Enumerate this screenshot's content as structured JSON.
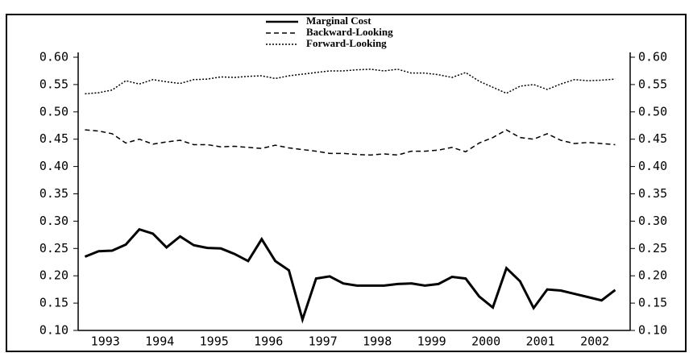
{
  "chart_data": {
    "type": "line",
    "x": [
      1993.125,
      1993.375,
      1993.625,
      1993.875,
      1994.125,
      1994.375,
      1994.625,
      1994.875,
      1995.125,
      1995.375,
      1995.625,
      1995.875,
      1996.125,
      1996.375,
      1996.625,
      1996.875,
      1997.125,
      1997.375,
      1997.625,
      1997.875,
      1998.125,
      1998.375,
      1998.625,
      1998.875,
      1999.125,
      1999.375,
      1999.625,
      1999.875,
      2000.125,
      2000.375,
      2000.625,
      2000.875,
      2001.125,
      2001.375,
      2001.625,
      2001.875,
      2002.125,
      2002.375,
      2002.625,
      2002.875
    ],
    "series": [
      {
        "name": "Marginal Cost",
        "color": "#000000",
        "dash": "solid",
        "values": [
          0.235,
          0.245,
          0.246,
          0.257,
          0.285,
          0.277,
          0.252,
          0.272,
          0.256,
          0.251,
          0.25,
          0.24,
          0.227,
          0.267,
          0.227,
          0.21,
          0.12,
          0.195,
          0.199,
          0.186,
          0.182,
          0.182,
          0.182,
          0.185,
          0.186,
          0.182,
          0.185,
          0.198,
          0.195,
          0.162,
          0.142,
          0.214,
          0.19,
          0.141,
          0.175,
          0.173,
          0.167,
          0.161,
          0.155,
          0.174
        ]
      },
      {
        "name": "Backward-Looking",
        "color": "#000000",
        "dash": "dashed",
        "values": [
          0.467,
          0.465,
          0.46,
          0.443,
          0.45,
          0.441,
          0.445,
          0.448,
          0.44,
          0.44,
          0.436,
          0.437,
          0.435,
          0.433,
          0.439,
          0.434,
          0.431,
          0.428,
          0.424,
          0.424,
          0.422,
          0.421,
          0.423,
          0.421,
          0.428,
          0.428,
          0.43,
          0.435,
          0.427,
          0.443,
          0.453,
          0.467,
          0.453,
          0.45,
          0.46,
          0.448,
          0.442,
          0.444,
          0.442,
          0.44
        ]
      },
      {
        "name": "Forward-Looking",
        "color": "#000000",
        "dash": "dotted",
        "values": [
          0.533,
          0.535,
          0.54,
          0.557,
          0.551,
          0.559,
          0.555,
          0.552,
          0.559,
          0.56,
          0.564,
          0.563,
          0.565,
          0.566,
          0.561,
          0.566,
          0.569,
          0.572,
          0.575,
          0.575,
          0.577,
          0.578,
          0.575,
          0.578,
          0.571,
          0.571,
          0.568,
          0.563,
          0.572,
          0.556,
          0.545,
          0.534,
          0.547,
          0.55,
          0.541,
          0.551,
          0.559,
          0.557,
          0.558,
          0.56
        ]
      }
    ],
    "xlim": [
      1993,
      2003.15
    ],
    "xticks": [
      {
        "value": 1993.5,
        "label": "1993"
      },
      {
        "value": 1994.5,
        "label": "1994"
      },
      {
        "value": 1995.5,
        "label": "1995"
      },
      {
        "value": 1996.5,
        "label": "1996"
      },
      {
        "value": 1997.5,
        "label": "1997"
      },
      {
        "value": 1998.5,
        "label": "1998"
      },
      {
        "value": 1999.5,
        "label": "1999"
      },
      {
        "value": 2000.5,
        "label": "2000"
      },
      {
        "value": 2001.5,
        "label": "2001"
      },
      {
        "value": 2002.5,
        "label": "2002"
      }
    ],
    "ylim": [
      0.1,
      0.6
    ],
    "yticks": [
      {
        "value": 0.1,
        "label": "0.10"
      },
      {
        "value": 0.15,
        "label": "0.15"
      },
      {
        "value": 0.2,
        "label": "0.20"
      },
      {
        "value": 0.25,
        "label": "0.25"
      },
      {
        "value": 0.3,
        "label": "0.30"
      },
      {
        "value": 0.35,
        "label": "0.35"
      },
      {
        "value": 0.4,
        "label": "0.40"
      },
      {
        "value": 0.45,
        "label": "0.45"
      },
      {
        "value": 0.5,
        "label": "0.50"
      },
      {
        "value": 0.55,
        "label": "0.55"
      },
      {
        "value": 0.6,
        "label": "0.60"
      }
    ],
    "legend": "top",
    "grid": false
  }
}
